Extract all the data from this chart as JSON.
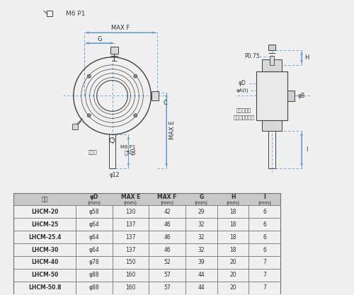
{
  "bg_color": "#f0f0f0",
  "line_color": "#5b9bd5",
  "dark_color": "#404040",
  "mid_color": "#606060",
  "text_color": "#303030",
  "header_bg": "#c8c8c8",
  "table_border": "#707070",
  "row_alt_bg": "#e8e8e8",
  "title_text": "M6 P1",
  "note_text1": "M6 P1",
  "note_text2": "深5",
  "hole_text": "跳し穴",
  "phi12": "φ12",
  "label_G": "G",
  "label_MAXF": "MAX F",
  "label_MAXE": "MAX E",
  "label_C": "C",
  "label_60": "60",
  "label_P075": "P0.75",
  "label_phiD": "φD",
  "label_phiAt": "φA(t)",
  "label_phiB": "φB",
  "label_H": "H",
  "label_I": "I",
  "label_nejiring": "ネジリング",
  "label_delrin": "デルリンリング",
  "table_headers_line1": [
    "品番",
    "φD",
    "MAX E",
    "MAX F",
    "G",
    "H",
    "I"
  ],
  "table_headers_line2": [
    "",
    "(mm)",
    "(mm)",
    "(mm)",
    "(mm)",
    "(mm)",
    "(mm)"
  ],
  "table_data": [
    [
      "LHCM-20",
      "φ58",
      "130",
      "42",
      "29",
      "18",
      "6"
    ],
    [
      "LHCM-25",
      "φ64",
      "137",
      "46",
      "32",
      "18",
      "6"
    ],
    [
      "LHCM-25.4",
      "φ64",
      "137",
      "46",
      "32",
      "18",
      "6"
    ],
    [
      "LHCM-30",
      "φ64",
      "137",
      "46",
      "32",
      "18",
      "6"
    ],
    [
      "LHCM-40",
      "φ78",
      "150",
      "52",
      "39",
      "20",
      "7"
    ],
    [
      "LHCM-50",
      "φ88",
      "160",
      "57",
      "44",
      "20",
      "7"
    ],
    [
      "LHCM-50.8",
      "φ88",
      "160",
      "57",
      "44",
      "20",
      "7"
    ]
  ]
}
